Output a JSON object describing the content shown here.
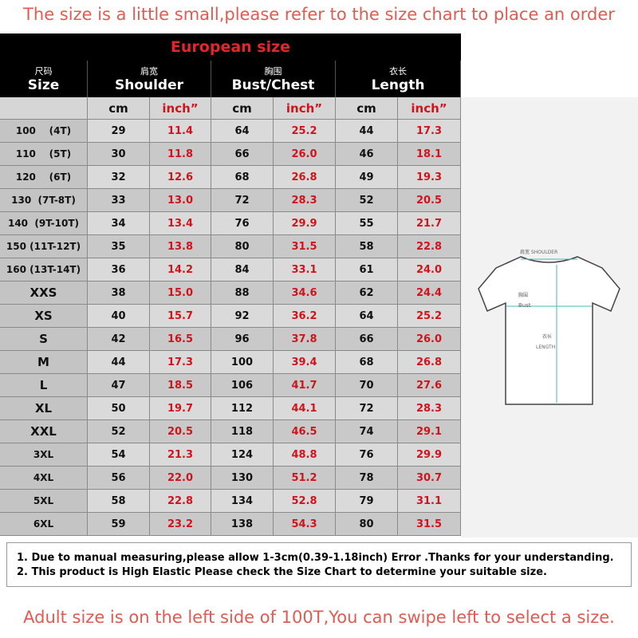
{
  "header": {
    "note": "The size is a little small,please refer to the size chart to place an order"
  },
  "table": {
    "title": "European size",
    "columns": [
      {
        "zh": "尺码",
        "en": "Size"
      },
      {
        "zh": "肩宽",
        "en": "Shoulder"
      },
      {
        "zh": "胸围",
        "en": "Bust/Chest"
      },
      {
        "zh": "衣长",
        "en": "Length"
      }
    ],
    "units": [
      "cm",
      "inch”",
      "cm",
      "inch”",
      "cm",
      "inch”"
    ],
    "rows": [
      [
        "100    (4T)",
        "29",
        "11.4",
        "64",
        "25.2",
        "44",
        "17.3"
      ],
      [
        "110    (5T)",
        "30",
        "11.8",
        "66",
        "26.0",
        "46",
        "18.1"
      ],
      [
        "120    (6T)",
        "32",
        "12.6",
        "68",
        "26.8",
        "49",
        "19.3"
      ],
      [
        "130  (7T-8T)",
        "33",
        "13.0",
        "72",
        "28.3",
        "52",
        "20.5"
      ],
      [
        "140  (9T-10T)",
        "34",
        "13.4",
        "76",
        "29.9",
        "55",
        "21.7"
      ],
      [
        "150 (11T-12T)",
        "35",
        "13.8",
        "80",
        "31.5",
        "58",
        "22.8"
      ],
      [
        "160 (13T-14T)",
        "36",
        "14.2",
        "84",
        "33.1",
        "61",
        "24.0"
      ],
      [
        "XXS",
        "38",
        "15.0",
        "88",
        "34.6",
        "62",
        "24.4"
      ],
      [
        "XS",
        "40",
        "15.7",
        "92",
        "36.2",
        "64",
        "25.2"
      ],
      [
        "S",
        "42",
        "16.5",
        "96",
        "37.8",
        "66",
        "26.0"
      ],
      [
        "M",
        "44",
        "17.3",
        "100",
        "39.4",
        "68",
        "26.8"
      ],
      [
        "L",
        "47",
        "18.5",
        "106",
        "41.7",
        "70",
        "27.6"
      ],
      [
        "XL",
        "50",
        "19.7",
        "112",
        "44.1",
        "72",
        "28.3"
      ],
      [
        "XXL",
        "52",
        "20.5",
        "118",
        "46.5",
        "74",
        "29.1"
      ],
      [
        "3XL",
        "54",
        "21.3",
        "124",
        "48.8",
        "76",
        "29.9"
      ],
      [
        "4XL",
        "56",
        "22.0",
        "130",
        "51.2",
        "78",
        "30.7"
      ],
      [
        "5XL",
        "58",
        "22.8",
        "134",
        "52.8",
        "79",
        "31.1"
      ],
      [
        "6XL",
        "59",
        "23.2",
        "138",
        "54.3",
        "80",
        "31.5"
      ]
    ]
  },
  "illustration": {
    "shoulder": "肩宽 SHOULDER",
    "bust_zh": "胸围",
    "bust": "Bust",
    "length_zh": "衣长",
    "length": "LENGTH"
  },
  "notes": [
    "1. Due to manual measuring,please allow 1-3cm(0.39-1.18inch) Error .Thanks for your understanding.",
    "2. This product is High Elastic Please check the Size Chart to determine your suitable size."
  ],
  "footer": {
    "note": "Adult size is on the left side of 100T,You can swipe left to select a size."
  }
}
